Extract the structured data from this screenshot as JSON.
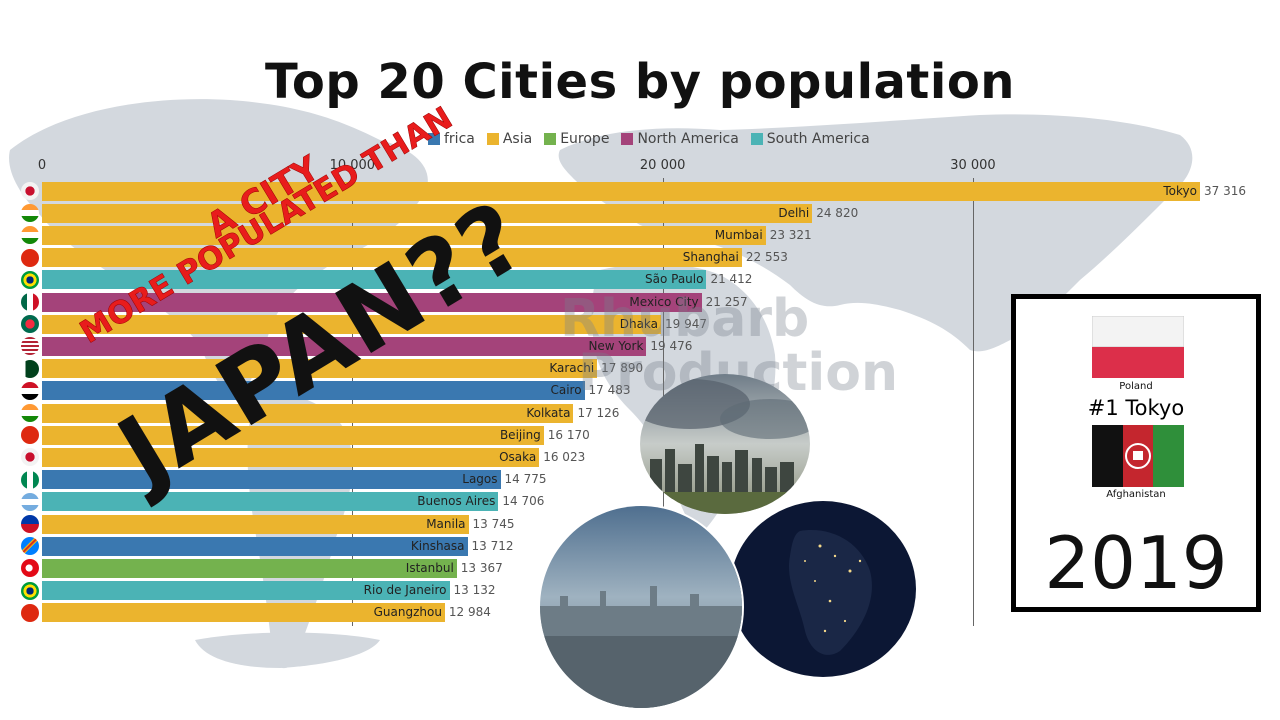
{
  "chart_data": {
    "type": "bar",
    "orientation": "horizontal",
    "title": "Top 20 Cities by population",
    "xlim": [
      0,
      37316
    ],
    "xticks": [
      "0",
      "10 000",
      "20 000",
      "30 000"
    ],
    "legend": [
      {
        "name": "Africa",
        "color": "#3a78b0"
      },
      {
        "name": "Asia",
        "color": "#ebb42e"
      },
      {
        "name": "Europe",
        "color": "#74b24e"
      },
      {
        "name": "North America",
        "color": "#a4437a"
      },
      {
        "name": "South America",
        "color": "#4bb3b5"
      }
    ],
    "legend_visible_text": [
      "frica",
      "Asia",
      "Europe",
      "North America",
      "South America"
    ],
    "categories": [
      "Tokyo",
      "Delhi",
      "Mumbai",
      "Shanghai",
      "São Paulo",
      "Mexico City",
      "Dhaka",
      "New York",
      "Karachi",
      "Cairo",
      "Kolkata",
      "Beijing",
      "Osaka",
      "Lagos",
      "Buenos Aires",
      "Manila",
      "Kinshasa",
      "Istanbul",
      "Rio de Janeiro",
      "Guangzhou"
    ],
    "values": [
      37316,
      24820,
      23321,
      22553,
      21412,
      21257,
      19947,
      19476,
      17890,
      17483,
      17126,
      16170,
      16023,
      14775,
      14706,
      13745,
      13712,
      13367,
      13132,
      12984
    ],
    "value_labels": [
      "37 316",
      "24 820",
      "23 321",
      "22 553",
      "21 412",
      "21 257",
      "19 947",
      "19 476",
      "17 890",
      "17 483",
      "17 126",
      "16 170",
      "16 023",
      "14 775",
      "14 706",
      "13 745",
      "13 712",
      "13 367",
      "13 132",
      "12 984"
    ],
    "regions": [
      "Asia",
      "Asia",
      "Asia",
      "Asia",
      "South America",
      "North America",
      "Asia",
      "North America",
      "Asia",
      "Africa",
      "Asia",
      "Asia",
      "Asia",
      "Africa",
      "South America",
      "Asia",
      "Africa",
      "Europe",
      "South America",
      "Asia"
    ],
    "region_colors": {
      "Africa": "#3a78b0",
      "Asia": "#ebb42e",
      "Europe": "#74b24e",
      "North America": "#a4437a",
      "South America": "#4bb3b5"
    },
    "flag_icons": [
      "japan-flag-icon",
      "india-flag-icon",
      "india-flag-icon",
      "china-flag-icon",
      "brazil-flag-icon",
      "mexico-flag-icon",
      "bangladesh-flag-icon",
      "usa-flag-icon",
      "pakistan-flag-icon",
      "egypt-flag-icon",
      "india-flag-icon",
      "china-flag-icon",
      "japan-flag-icon",
      "nigeria-flag-icon",
      "argentina-flag-icon",
      "philippines-flag-icon",
      "dr-congo-flag-icon",
      "turkey-flag-icon",
      "brazil-flag-icon",
      "china-flag-icon"
    ]
  },
  "overlay": {
    "line1": "A CITY",
    "line2": "MORE POPULATED THAN",
    "line3": "JAPAN??"
  },
  "watermark": {
    "line1": "Rhubarb",
    "line2": "Production"
  },
  "year_box": {
    "flag_top_label": "Poland",
    "leader": "#1 Tokyo",
    "flag_bottom_label": "Afghanistan",
    "year": "2019"
  },
  "colors": {
    "map": "#c7ccd3"
  }
}
